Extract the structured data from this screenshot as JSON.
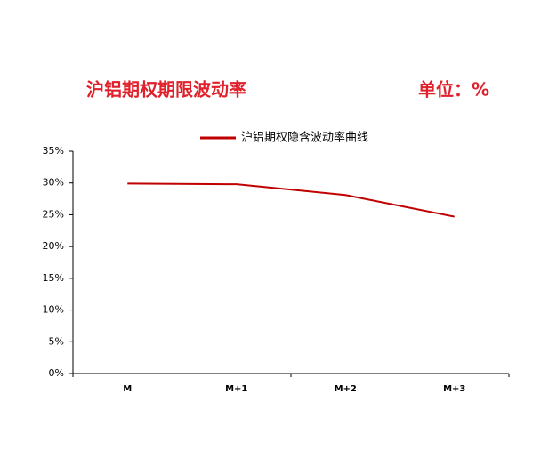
{
  "chart_data": {
    "type": "line",
    "title": "沪铝期权期限波动率",
    "unit": "单位：%",
    "categories": [
      "M",
      "M+1",
      "M+2",
      "M+3"
    ],
    "series": [
      {
        "name": "沪铝期权隐含波动率曲线",
        "color": "#c00000",
        "values": [
          29.9,
          29.8,
          28.1,
          24.7
        ]
      }
    ],
    "ylim": [
      0,
      35
    ],
    "yticks": [
      {
        "value": 0,
        "label": "0%"
      },
      {
        "value": 5,
        "label": "5%"
      },
      {
        "value": 10,
        "label": "10%"
      },
      {
        "value": 15,
        "label": "15%"
      },
      {
        "value": 20,
        "label": "20%"
      },
      {
        "value": 25,
        "label": "25%"
      },
      {
        "value": 30,
        "label": "30%"
      },
      {
        "value": 35,
        "label": "35%"
      }
    ],
    "grid": false,
    "legend": "top"
  }
}
